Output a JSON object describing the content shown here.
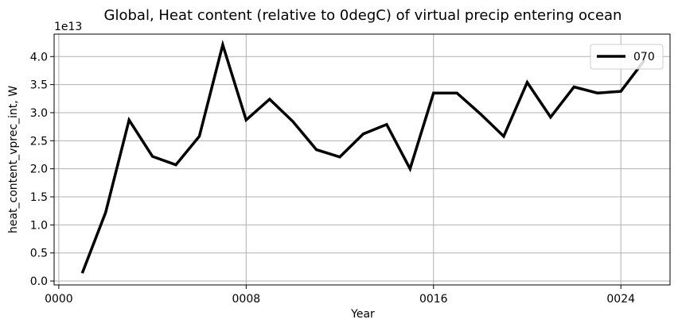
{
  "chart_data": {
    "type": "line",
    "title": "Global, Heat content (relative to 0degC) of virtual precip entering ocean",
    "xlabel": "Year",
    "ylabel": "heat_content_vprec_int, W",
    "y_offset_label": "1e13",
    "xlim": [
      -0.2,
      26.1
    ],
    "ylim": [
      -0.07,
      4.4
    ],
    "y_scale_factor": 10000000000000.0,
    "grid": true,
    "legend_position": "top-right",
    "x_ticks": [
      0,
      8,
      16,
      24
    ],
    "x_tick_labels": [
      "0000",
      "0008",
      "0016",
      "0024"
    ],
    "y_ticks": [
      0.0,
      0.5,
      1.0,
      1.5,
      2.0,
      2.5,
      3.0,
      3.5,
      4.0
    ],
    "y_tick_labels": [
      "0.0",
      "0.5",
      "1.0",
      "1.5",
      "2.0",
      "2.5",
      "3.0",
      "3.5",
      "4.0"
    ],
    "series": [
      {
        "name": "070",
        "color": "#000000",
        "x": [
          1,
          2,
          3,
          4,
          5,
          6,
          7,
          8,
          9,
          10,
          11,
          12,
          13,
          14,
          15,
          16,
          17,
          18,
          19,
          20,
          21,
          22,
          23,
          24,
          25
        ],
        "values": [
          0.14,
          1.22,
          2.87,
          2.22,
          2.07,
          2.58,
          4.21,
          2.87,
          3.24,
          2.84,
          2.34,
          2.21,
          2.62,
          2.79,
          2.0,
          3.35,
          3.35,
          2.98,
          2.58,
          3.54,
          2.92,
          3.46,
          3.35,
          3.38,
          3.93
        ]
      }
    ]
  }
}
